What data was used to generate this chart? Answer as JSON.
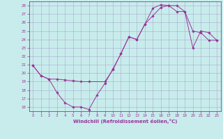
{
  "xlabel": "Windchill (Refroidissement éolien,°C)",
  "bg_color": "#c8ecec",
  "line_color": "#993399",
  "grid_color": "#aaaacc",
  "xlim": [
    -0.5,
    23.5
  ],
  "ylim": [
    15.5,
    28.5
  ],
  "yticks": [
    16,
    17,
    18,
    19,
    20,
    21,
    22,
    23,
    24,
    25,
    26,
    27,
    28
  ],
  "xticks": [
    0,
    1,
    2,
    3,
    4,
    5,
    6,
    7,
    8,
    9,
    10,
    11,
    12,
    13,
    14,
    15,
    16,
    17,
    18,
    19,
    20,
    21,
    22,
    23
  ],
  "line1_x": [
    0,
    1,
    2,
    3,
    4,
    5,
    6,
    7,
    9,
    10,
    11,
    12,
    13,
    14,
    15,
    16,
    17,
    18,
    19,
    20,
    21,
    22,
    23
  ],
  "line1_y": [
    20.9,
    19.7,
    19.3,
    19.3,
    19.2,
    19.1,
    19.0,
    19.0,
    19.0,
    20.4,
    22.3,
    24.3,
    24.0,
    25.8,
    26.8,
    27.8,
    28.0,
    28.0,
    27.3,
    25.0,
    24.8,
    23.9,
    23.9
  ],
  "line2_x": [
    0,
    1,
    2,
    3,
    4,
    5,
    6,
    7,
    8,
    9,
    10,
    11,
    12,
    13,
    14,
    15,
    16,
    17,
    18,
    19,
    20,
    21,
    22,
    23
  ],
  "line2_y": [
    20.9,
    19.7,
    19.3,
    17.7,
    16.5,
    16.0,
    16.0,
    15.7,
    17.4,
    18.8,
    20.5,
    22.3,
    24.3,
    24.0,
    25.8,
    27.7,
    28.1,
    28.0,
    27.3,
    27.3,
    23.0,
    25.0,
    24.8,
    23.9
  ]
}
